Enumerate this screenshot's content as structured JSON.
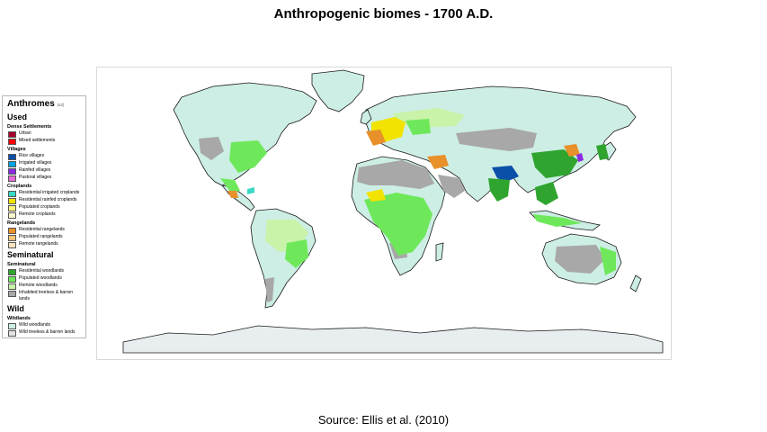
{
  "title": "Anthropogenic biomes - 1700 A.D.",
  "source": "Source: Ellis et al. (2010)",
  "legend": {
    "title": "Anthromes",
    "version": "(v2)",
    "groups": [
      {
        "name": "Used",
        "subgroups": [
          {
            "name": "Dense Settlements",
            "items": [
              {
                "label": "Urban",
                "color": "#a8002a"
              },
              {
                "label": "Mixed settlements",
                "color": "#ff0000"
              }
            ]
          },
          {
            "name": "Villages",
            "items": [
              {
                "label": "Rice villages",
                "color": "#0a4fa8"
              },
              {
                "label": "Irrigated villages",
                "color": "#00a3e0"
              },
              {
                "label": "Rainfed villages",
                "color": "#8a2be2"
              },
              {
                "label": "Pastoral villages",
                "color": "#e36ad8"
              }
            ]
          },
          {
            "name": "Croplands",
            "items": [
              {
                "label": "Residential irrigated croplands",
                "color": "#39d9c6"
              },
              {
                "label": "Residential rainfed croplands",
                "color": "#f2e200"
              },
              {
                "label": "Populated croplands",
                "color": "#fff27a"
              },
              {
                "label": "Remote croplands",
                "color": "#fffbd1"
              }
            ]
          },
          {
            "name": "Rangelands",
            "items": [
              {
                "label": "Residential rangelands",
                "color": "#e8902a"
              },
              {
                "label": "Populated rangelands",
                "color": "#f7c27a"
              },
              {
                "label": "Remote rangelands",
                "color": "#fde3c0"
              }
            ]
          }
        ]
      },
      {
        "name": "Seminatural",
        "subgroups": [
          {
            "name": "Seminatural",
            "items": [
              {
                "label": "Residential woodlands",
                "color": "#2fa52f"
              },
              {
                "label": "Populated woodlands",
                "color": "#6ee85a"
              },
              {
                "label": "Remote woodlands",
                "color": "#c8f3a8"
              },
              {
                "label": "Inhabited treeless & barren lands",
                "color": "#a8a8a8"
              }
            ]
          }
        ]
      },
      {
        "name": "Wild",
        "subgroups": [
          {
            "name": "Wildlands",
            "items": [
              {
                "label": "Wild woodlands",
                "color": "#cdeee5"
              },
              {
                "label": "Wild treeless & barren lands",
                "color": "#e2e2e2"
              }
            ]
          }
        ]
      }
    ]
  },
  "map": {
    "colors": {
      "ocean": "#ffffff",
      "coast": "#1a1a1a",
      "wild_woodlands": "#cdeee5",
      "wild_barren": "#e2e2e2",
      "inhabited_barren": "#a8a8a8",
      "remote_woodlands": "#c8f3a8",
      "populated_woodlands": "#6ee85a",
      "residential_woodlands": "#2fa52f",
      "rangelands": "#e8902a",
      "croplands": "#f2e200",
      "rice_villages": "#0a4fa8",
      "rainfed_villages": "#8a2be2"
    }
  }
}
